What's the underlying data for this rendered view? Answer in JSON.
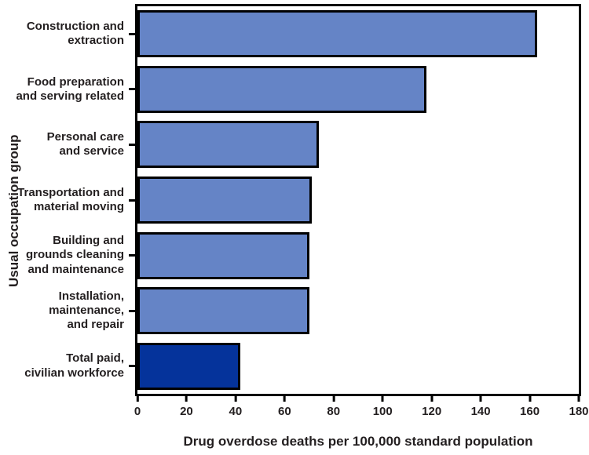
{
  "figure": {
    "background": "#ffffff",
    "text_color": "#231f20",
    "frame_color": "#000000"
  },
  "chart_data": {
    "type": "bar",
    "orientation": "horizontal",
    "title": "",
    "xlabel": "Drug overdose deaths per 100,000 standard population",
    "ylabel": "Usual occupation group",
    "xlim": [
      0,
      180
    ],
    "xticks": [
      0,
      20,
      40,
      60,
      80,
      100,
      120,
      140,
      160,
      180
    ],
    "grid": false,
    "legend": null,
    "categories": [
      "Construction and\nextraction",
      "Food preparation\nand serving related",
      "Personal care\nand service",
      "Transportation and\nmaterial moving",
      "Building and\ngrounds cleaning\nand maintenance",
      "Installation,\nmaintenance,\nand repair",
      "Total paid,\ncivilian workforce"
    ],
    "values": [
      163,
      118,
      74,
      71,
      70,
      70,
      42
    ],
    "bar_color": "#6584c6",
    "highlight_color": "#05339b",
    "highlight_index": 6,
    "bar_border_color": "#000000"
  }
}
